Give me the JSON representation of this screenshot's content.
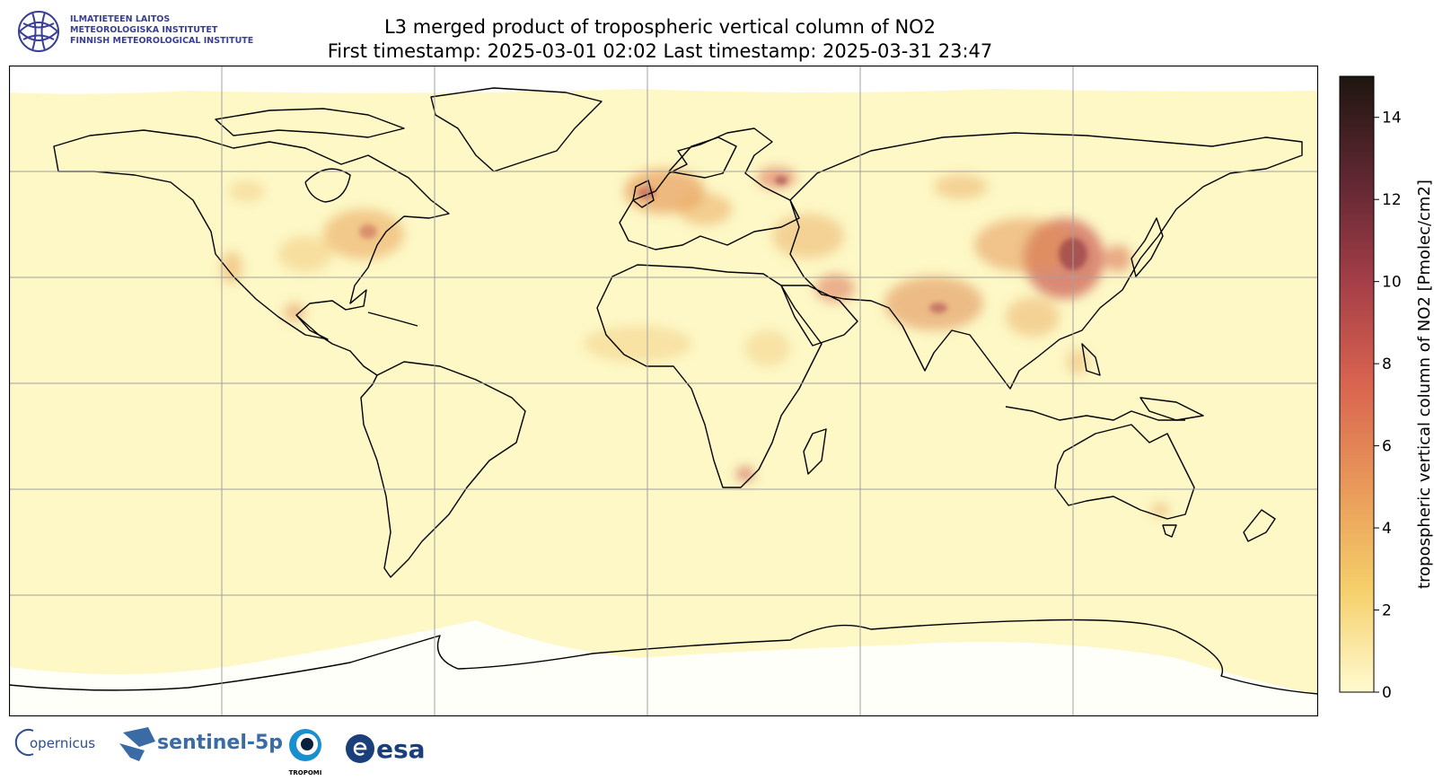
{
  "header": {
    "title_line1": "L3 merged product of tropospheric vertical column of NO2",
    "title_line2": "First timestamp: 2025-03-01 02:02   Last timestamp: 2025-03-31 23:47"
  },
  "institute_logo": {
    "lines": [
      "ILMATIETEEN LAITOS",
      "METEOROLOGISKA INSTITUTET",
      "FINNISH METEOROLOGICAL INSTITUTE"
    ],
    "color": "#3a3f96"
  },
  "map": {
    "projection": "plate carree (global)",
    "grid": true,
    "background_color": "#fdf8c6",
    "coastline_color": "#000000",
    "hotspot_regions": [
      "eastern United States",
      "Western Europe",
      "Middle East",
      "India",
      "Eastern China",
      "Highveld South Africa",
      "Moscow"
    ]
  },
  "colorbar": {
    "label": "tropospheric vertical column of NO2 [Pmolec/cm2]",
    "min": 0,
    "max": 15,
    "ticks": [
      0,
      2,
      4,
      6,
      8,
      10,
      12,
      14
    ],
    "colors": [
      "#fffbd0",
      "#f5cf6a",
      "#e9995a",
      "#d96450",
      "#a43e48",
      "#5f2732",
      "#1e1610"
    ]
  },
  "partner_logos": {
    "copernicus": "opernicus",
    "sentinel": "sentinel-5p",
    "tropomi": "TROPOMI",
    "esa": "esa"
  },
  "chart_data": {
    "type": "heatmap",
    "title": "L3 merged product of tropospheric vertical column of NO2",
    "subtitle": "First timestamp: 2025-03-01 02:02   Last timestamp: 2025-03-31 23:47",
    "colorbar_label": "tropospheric vertical column of NO2 [Pmolec/cm2]",
    "color_range": [
      0,
      15
    ],
    "colorbar_ticks": [
      0,
      2,
      4,
      6,
      8,
      10,
      12,
      14
    ],
    "grid": true
  }
}
